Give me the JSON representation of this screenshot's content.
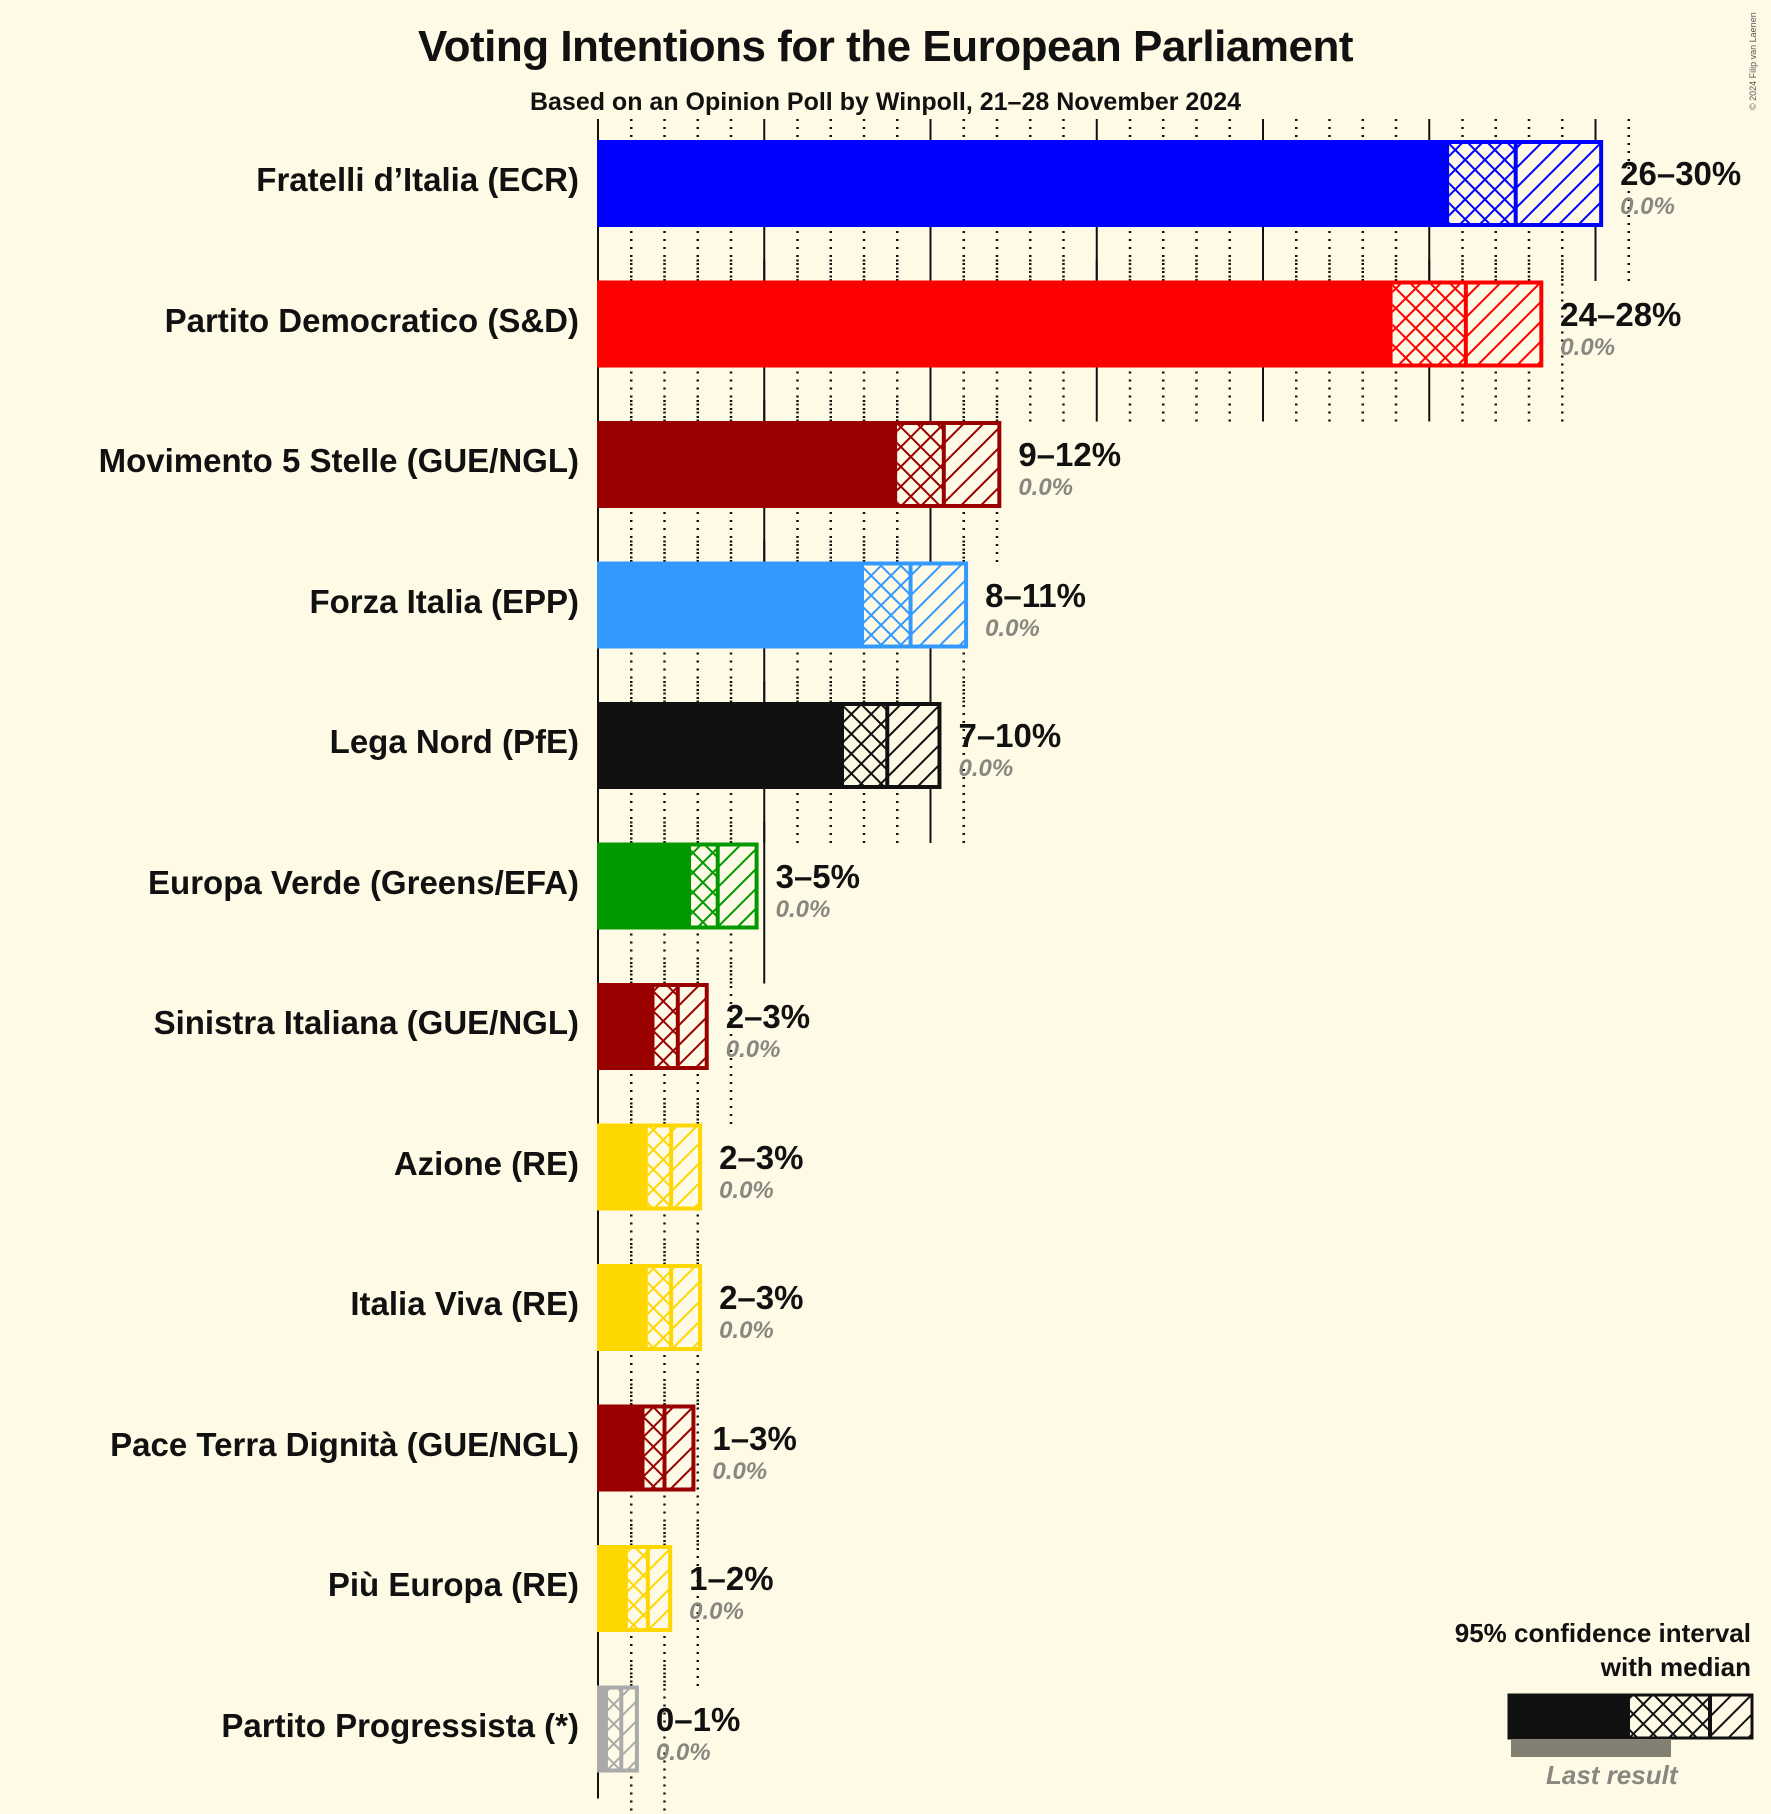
{
  "header": {
    "title": "Voting Intentions for the European Parliament",
    "subtitle": "Based on an Opinion Poll by Winpoll, 21–28 November 2024",
    "copyright": "© 2024 Filip van Laenen"
  },
  "legend": {
    "line1": "95% confidence interval",
    "line2": "with median",
    "last_result": "Last result"
  },
  "chart_data": {
    "type": "bar",
    "orientation": "horizontal",
    "title": "Voting Intentions for the European Parliament",
    "subtitle": "Based on an Opinion Poll by Winpoll, 21–28 November 2024",
    "xlabel": "",
    "ylabel": "",
    "xlim": [
      0,
      30
    ],
    "grid": {
      "major_every": 5,
      "minor_every": 1
    },
    "legend_position": "bottom-right",
    "categories": [
      "Fratelli d’Italia (ECR)",
      "Partito Democratico (S&D)",
      "Movimento 5 Stelle (GUE/NGL)",
      "Forza Italia (EPP)",
      "Lega Nord (PfE)",
      "Europa Verde (Greens/EFA)",
      "Sinistra Italiana (GUE/NGL)",
      "Azione (RE)",
      "Italia Viva (RE)",
      "Pace Terra Dignità (GUE/NGL)",
      "Più Europa (RE)",
      "Partito Progressista (*)"
    ],
    "series": [
      {
        "name": "95% CI lower",
        "values": [
          25.6,
          23.9,
          9.0,
          8.0,
          7.4,
          2.8,
          1.7,
          1.5,
          1.5,
          1.4,
          0.9,
          0.3
        ]
      },
      {
        "name": "Median",
        "values": [
          27.6,
          26.1,
          10.4,
          9.4,
          8.7,
          3.6,
          2.4,
          2.2,
          2.2,
          2.0,
          1.5,
          0.7
        ]
      },
      {
        "name": "95% CI upper",
        "values": [
          30.2,
          28.4,
          12.1,
          11.1,
          10.3,
          4.8,
          3.3,
          3.1,
          3.1,
          2.9,
          2.2,
          1.2
        ]
      },
      {
        "name": "Last result",
        "values": [
          0.0,
          0.0,
          0.0,
          0.0,
          0.0,
          0.0,
          0.0,
          0.0,
          0.0,
          0.0,
          0.0,
          0.0
        ]
      }
    ],
    "range_labels": [
      "26–30%",
      "24–28%",
      "9–12%",
      "8–11%",
      "7–10%",
      "3–5%",
      "2–3%",
      "2–3%",
      "2–3%",
      "1–3%",
      "1–2%",
      "0–1%"
    ],
    "last_result_labels": [
      "0.0%",
      "0.0%",
      "0.0%",
      "0.0%",
      "0.0%",
      "0.0%",
      "0.0%",
      "0.0%",
      "0.0%",
      "0.0%",
      "0.0%",
      "0.0%"
    ],
    "colors": [
      "#0000ff",
      "#ff0000",
      "#990000",
      "#3399ff",
      "#111111",
      "#009900",
      "#990000",
      "#ffd700",
      "#ffd700",
      "#990000",
      "#ffd700",
      "#aaaaaa"
    ]
  }
}
